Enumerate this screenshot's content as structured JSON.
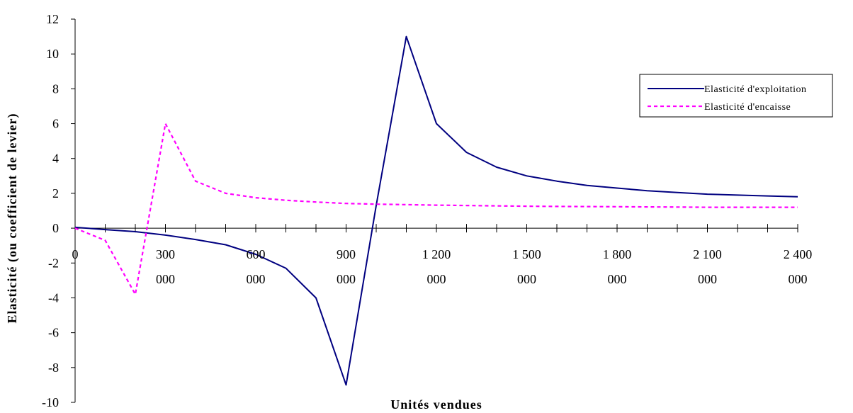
{
  "chart_data": {
    "type": "line",
    "xlabel": "Unités vendues",
    "ylabel": "Elasticité (ou coefficient de levier)",
    "ylim": [
      -10,
      12
    ],
    "yticks": [
      -10,
      -8,
      -6,
      -4,
      -2,
      0,
      2,
      4,
      6,
      8,
      10,
      12
    ],
    "xlim": [
      0,
      2400000
    ],
    "xticks": [
      {
        "value": 0,
        "line1": "0",
        "line2": ""
      },
      {
        "value": 300000,
        "line1": "300",
        "line2": "000"
      },
      {
        "value": 600000,
        "line1": "600",
        "line2": "000"
      },
      {
        "value": 900000,
        "line1": "900",
        "line2": "000"
      },
      {
        "value": 1200000,
        "line1": "1 200",
        "line2": "000"
      },
      {
        "value": 1500000,
        "line1": "1 500",
        "line2": "000"
      },
      {
        "value": 1800000,
        "line1": "1 800",
        "line2": "000"
      },
      {
        "value": 2100000,
        "line1": "2 100",
        "line2": "000"
      },
      {
        "value": 2400000,
        "line1": "2 400",
        "line2": "000"
      }
    ],
    "minor_tick_step": 100000,
    "legend_position": "right",
    "series": [
      {
        "name": "Elasticité d'exploitation",
        "color": "#000080",
        "style": "solid",
        "points": [
          [
            0,
            0.05
          ],
          [
            100000,
            -0.08
          ],
          [
            200000,
            -0.2
          ],
          [
            300000,
            -0.4
          ],
          [
            400000,
            -0.65
          ],
          [
            500000,
            -0.95
          ],
          [
            600000,
            -1.5
          ],
          [
            700000,
            -2.3
          ],
          [
            800000,
            -4.0
          ],
          [
            900000,
            -9.0
          ],
          [
            1000000,
            1.3
          ],
          [
            1100000,
            11.0
          ],
          [
            1200000,
            6.0
          ],
          [
            1300000,
            4.35
          ],
          [
            1400000,
            3.5
          ],
          [
            1500000,
            3.0
          ],
          [
            1600000,
            2.7
          ],
          [
            1700000,
            2.45
          ],
          [
            1800000,
            2.3
          ],
          [
            1900000,
            2.15
          ],
          [
            2000000,
            2.05
          ],
          [
            2100000,
            1.95
          ],
          [
            2200000,
            1.9
          ],
          [
            2300000,
            1.85
          ],
          [
            2400000,
            1.8
          ]
        ]
      },
      {
        "name": "Elasticité d'encaisse",
        "color": "#ff00ff",
        "style": "dashed",
        "points": [
          [
            0,
            0.0
          ],
          [
            100000,
            -0.7
          ],
          [
            200000,
            -3.8
          ],
          [
            300000,
            6.0
          ],
          [
            400000,
            2.7
          ],
          [
            500000,
            2.0
          ],
          [
            600000,
            1.75
          ],
          [
            700000,
            1.6
          ],
          [
            800000,
            1.5
          ],
          [
            900000,
            1.42
          ],
          [
            1000000,
            1.38
          ],
          [
            1100000,
            1.35
          ],
          [
            1200000,
            1.32
          ],
          [
            1300000,
            1.3
          ],
          [
            1400000,
            1.28
          ],
          [
            1500000,
            1.26
          ],
          [
            1600000,
            1.25
          ],
          [
            1700000,
            1.24
          ],
          [
            1800000,
            1.23
          ],
          [
            1900000,
            1.22
          ],
          [
            2000000,
            1.21
          ],
          [
            2100000,
            1.2
          ],
          [
            2200000,
            1.2
          ],
          [
            2300000,
            1.2
          ],
          [
            2400000,
            1.2
          ]
        ]
      }
    ]
  }
}
